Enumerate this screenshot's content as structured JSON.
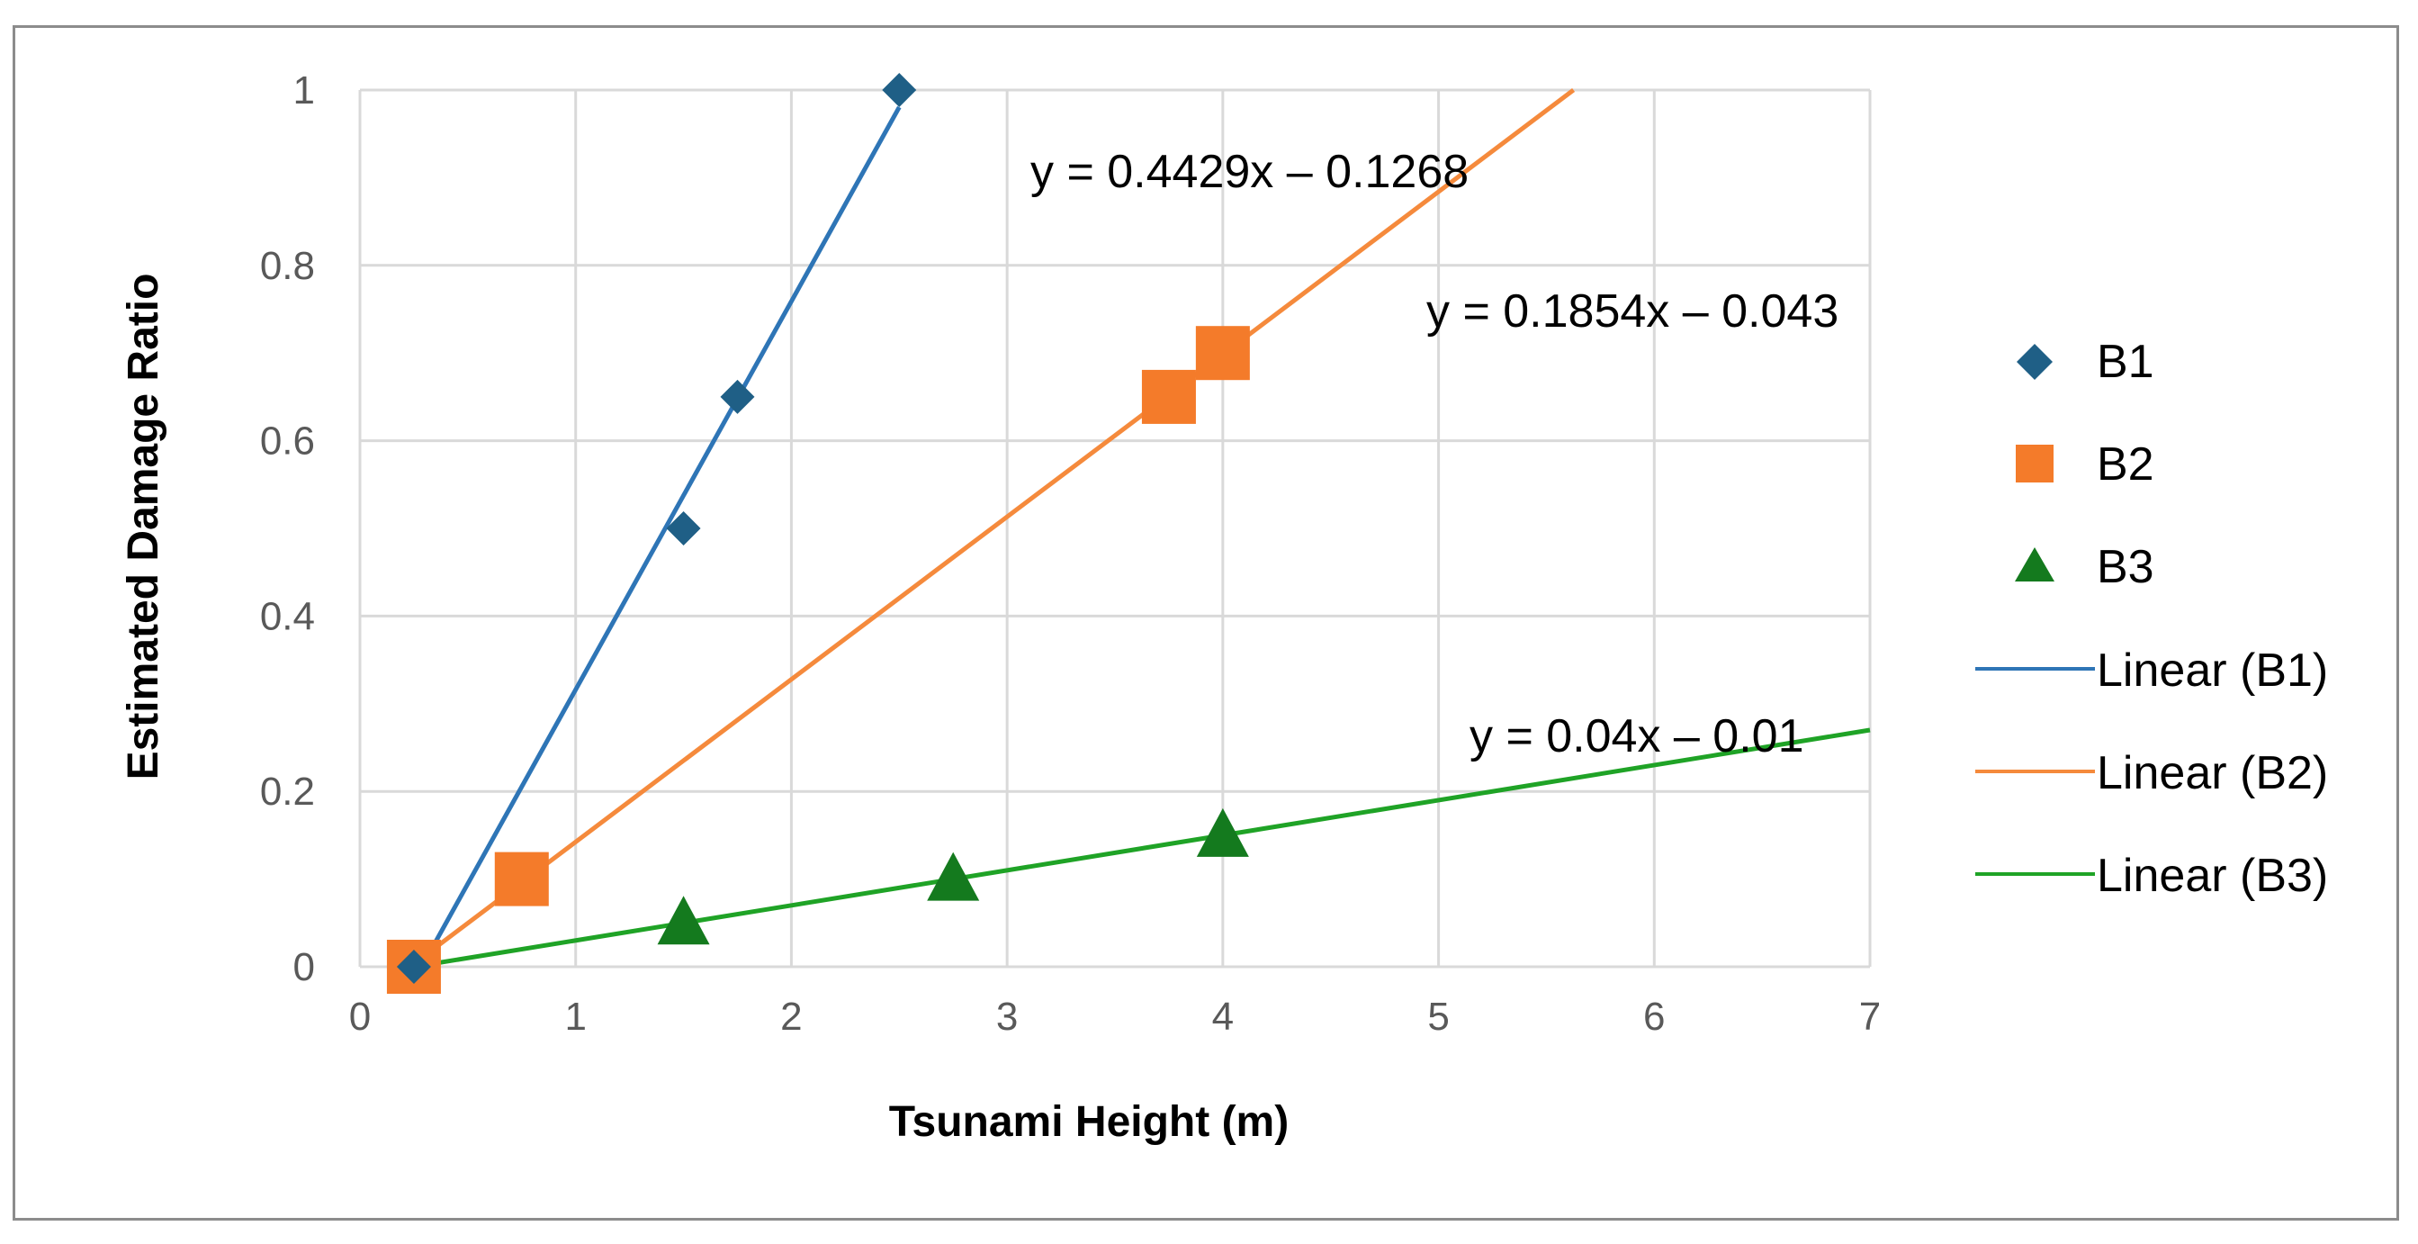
{
  "chart_data": {
    "type": "scatter",
    "xlabel": "Tsunami Height (m)",
    "ylabel": "Estimated Damage Ratio",
    "xlim": [
      0,
      7
    ],
    "ylim": [
      0,
      1
    ],
    "x_ticks": [
      "0",
      "1",
      "2",
      "3",
      "4",
      "5",
      "6",
      "7"
    ],
    "y_ticks": [
      "0",
      "0.2",
      "0.4",
      "0.6",
      "0.8",
      "1"
    ],
    "grid": true,
    "legend_position": "right",
    "series": [
      {
        "name": "B1",
        "marker": "diamond",
        "color": "#1f5f86",
        "points": [
          [
            0.25,
            0
          ],
          [
            1.5,
            0.5
          ],
          [
            1.75,
            0.65
          ],
          [
            2.5,
            1.0
          ]
        ],
        "trendline": {
          "name": "Linear (B1)",
          "slope": 0.4429,
          "intercept": -0.1268,
          "color": "#2e75b6",
          "equation": "y = 0.4429x – 0.1268",
          "x_range": [
            0.25,
            2.5
          ]
        }
      },
      {
        "name": "B2",
        "marker": "square",
        "color": "#f47b2a",
        "points": [
          [
            0.25,
            0
          ],
          [
            0.75,
            0.1
          ],
          [
            3.75,
            0.65
          ],
          [
            4.0,
            0.7
          ]
        ],
        "trendline": {
          "name": "Linear (B2)",
          "slope": 0.1854,
          "intercept": -0.043,
          "color": "#f58a3c",
          "equation": "y = 0.1854x – 0.043",
          "x_range": [
            0.25,
            7
          ]
        }
      },
      {
        "name": "B3",
        "marker": "triangle",
        "color": "#147a1e",
        "points": [
          [
            0.25,
            0
          ],
          [
            1.5,
            0.05
          ],
          [
            2.75,
            0.1
          ],
          [
            4.0,
            0.15
          ]
        ],
        "trendline": {
          "name": "Linear (B3)",
          "slope": 0.04,
          "intercept": -0.01,
          "color": "#1fa326",
          "equation": "y = 0.04x – 0.01",
          "x_range": [
            0.25,
            7
          ]
        }
      }
    ]
  }
}
